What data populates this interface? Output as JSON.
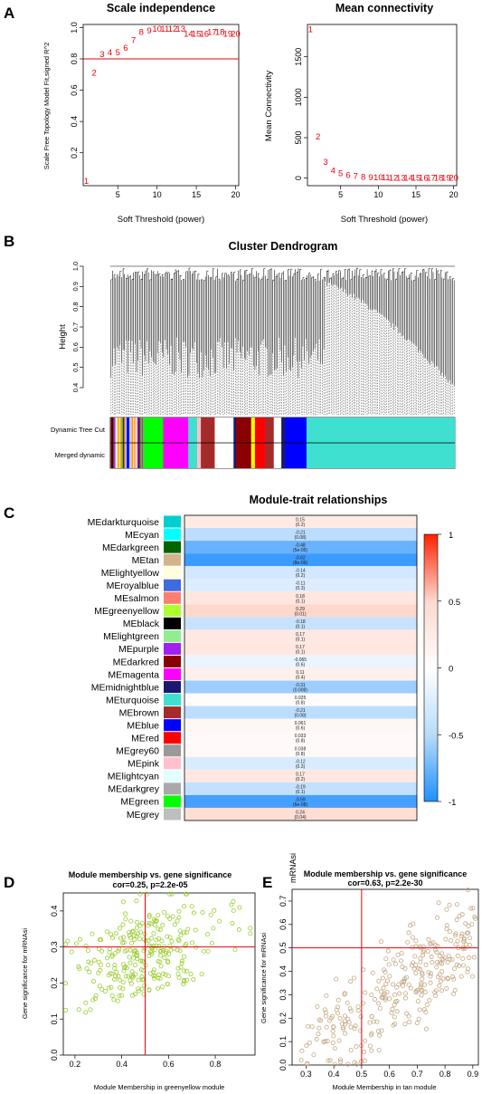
{
  "panels": {
    "a": "A",
    "b": "B",
    "c": "C",
    "d": "D",
    "e": "E"
  },
  "chart_data": [
    {
      "id": "scale_independence",
      "type": "scatter",
      "title": "Scale independence",
      "xlabel": "Soft Threshold (power)",
      "ylabel": "Scale Free Topology Model Fit,signed R^2",
      "xlim": [
        1,
        20
      ],
      "ylim": [
        0,
        1.0
      ],
      "xticks": [
        5,
        10,
        15,
        20
      ],
      "yticks": [
        0.2,
        0.4,
        0.6,
        0.8,
        1.0
      ],
      "hline": 0.8,
      "x": [
        1,
        2,
        3,
        4,
        5,
        6,
        7,
        8,
        9,
        10,
        11,
        12,
        13,
        14,
        15,
        16,
        17,
        18,
        19,
        20
      ],
      "y": [
        0.02,
        0.71,
        0.83,
        0.84,
        0.84,
        0.87,
        0.92,
        0.97,
        0.98,
        0.99,
        0.99,
        0.99,
        0.99,
        0.96,
        0.96,
        0.96,
        0.97,
        0.97,
        0.96,
        0.96
      ],
      "labels": [
        "1",
        "2",
        "3",
        "4",
        "5",
        "6",
        "7",
        "8",
        "9",
        "10",
        "11",
        "12",
        "13",
        "14",
        "15",
        "16",
        "17",
        "18",
        "19",
        "20"
      ]
    },
    {
      "id": "mean_connectivity",
      "type": "scatter",
      "title": "Mean connectivity",
      "xlabel": "Soft Threshold (power)",
      "ylabel": "Mean Connectivity",
      "xlim": [
        1,
        20
      ],
      "ylim": [
        0,
        1900
      ],
      "xticks": [
        5,
        10,
        15,
        20
      ],
      "yticks": [
        0,
        500,
        1000,
        1500
      ],
      "x": [
        1,
        2,
        3,
        4,
        5,
        6,
        7,
        8,
        9,
        10,
        11,
        12,
        13,
        14,
        15,
        16,
        17,
        18,
        19,
        20
      ],
      "y": [
        1840,
        510,
        200,
        90,
        55,
        35,
        22,
        15,
        10,
        7,
        5,
        4,
        3,
        3,
        2,
        2,
        2,
        1,
        1,
        1
      ],
      "labels": [
        "1",
        "2",
        "3",
        "4",
        "5",
        "6",
        "7",
        "8",
        "9",
        "10",
        "11",
        "12",
        "13",
        "14",
        "15",
        "16",
        "17",
        "18",
        "19",
        "20"
      ]
    },
    {
      "id": "cluster_dendrogram",
      "type": "dendrogram",
      "title": "Cluster Dendrogram",
      "ylabel": "Height",
      "ylim": [
        0.4,
        1.0
      ],
      "yticks": [
        0.4,
        0.5,
        0.6,
        0.7,
        0.8,
        0.9,
        1.0
      ],
      "color_rows": [
        "Dynamic Tree Cut",
        "Merged dynamic"
      ],
      "color_blocks": [
        "#9ad0f5",
        "#7f7f7f",
        "#ffffff",
        "#f0f064",
        "#0000ff",
        "#000000",
        "#a020f0",
        "#adff2f",
        "#ff00ff",
        "#00ff00",
        "#40e0d0",
        "#ff0000",
        "#ffc0cb",
        "#ffff00",
        "#a52a2a",
        "#191970",
        "#8b0000",
        "#fa8072",
        "#e0ffff",
        "#0000ff",
        "#40e0d0"
      ]
    },
    {
      "id": "module_trait",
      "type": "heatmap",
      "title": "Module-trait relationships",
      "rows": [
        {
          "name": "MEdarkturquoise",
          "color": "#00ced1",
          "value": 0.15,
          "p": "(0.2)"
        },
        {
          "name": "MEcyan",
          "color": "#00ffff",
          "value": -0.21,
          "p": "(0.08)"
        },
        {
          "name": "MEdarkgreen",
          "color": "#006400",
          "value": -0.48,
          "p": "(5e-05)"
        },
        {
          "name": "MEtan",
          "color": "#d2b48c",
          "value": -0.62,
          "p": "(8e-09)"
        },
        {
          "name": "MElightyellow",
          "color": "#ffffe0",
          "value": -0.14,
          "p": "(0.2)"
        },
        {
          "name": "MEroyalblue",
          "color": "#4169e1",
          "value": -0.11,
          "p": "(0.3)"
        },
        {
          "name": "MEsalmon",
          "color": "#fa8072",
          "value": 0.18,
          "p": "(0.1)"
        },
        {
          "name": "MEgreenyellow",
          "color": "#adff2f",
          "value": 0.29,
          "p": "(0.01)"
        },
        {
          "name": "MEblack",
          "color": "#000000",
          "value": -0.18,
          "p": "(0.1)"
        },
        {
          "name": "MElightgreen",
          "color": "#90ee90",
          "value": 0.17,
          "p": "(0.1)"
        },
        {
          "name": "MEpurple",
          "color": "#a020f0",
          "value": 0.17,
          "p": "(0.1)"
        },
        {
          "name": "MEdarkred",
          "color": "#8b0000",
          "value": -0.065,
          "p": "(0.6)"
        },
        {
          "name": "MEmagenta",
          "color": "#ff00ff",
          "value": 0.11,
          "p": "(0.4)"
        },
        {
          "name": "MEmidnightblue",
          "color": "#191970",
          "value": -0.31,
          "p": "(0.008)"
        },
        {
          "name": "MEturquoise",
          "color": "#40e0d0",
          "value": 0.025,
          "p": "(0.8)"
        },
        {
          "name": "MEbrown",
          "color": "#a52a2a",
          "value": -0.21,
          "p": "(0.08)"
        },
        {
          "name": "MEblue",
          "color": "#0000ff",
          "value": 0.061,
          "p": "(0.6)"
        },
        {
          "name": "MEred",
          "color": "#ff0000",
          "value": 0.033,
          "p": "(0.8)"
        },
        {
          "name": "MEgrey60",
          "color": "#999999",
          "value": 0.038,
          "p": "(0.8)"
        },
        {
          "name": "MEpink",
          "color": "#ffc0cb",
          "value": -0.12,
          "p": "(0.3)"
        },
        {
          "name": "MElightcyan",
          "color": "#e0ffff",
          "value": 0.17,
          "p": "(0.2)"
        },
        {
          "name": "MEdarkgrey",
          "color": "#a9a9a9",
          "value": -0.19,
          "p": "(0.1)"
        },
        {
          "name": "MEgreen",
          "color": "#00ff00",
          "value": -0.59,
          "p": "(6e-08)"
        },
        {
          "name": "MEgrey",
          "color": "#bebebe",
          "value": 0.24,
          "p": "(0.04)"
        }
      ],
      "scale_ticks": [
        "1",
        "0.5",
        "0",
        "-0.5",
        "-1"
      ],
      "scale_colors": [
        "#ff2200",
        "#fcd9cf",
        "#ffffff",
        "#b8dcf8",
        "#1e90ff"
      ]
    },
    {
      "id": "mm_gs_greenyellow",
      "type": "scatter",
      "title": "Module membership vs. gene significance",
      "subtitle": "cor=0.25, p=2.2e-05",
      "xlabel": "Module Membership in greenyellow module",
      "ylabel": "Gene significance for  mRNAsi",
      "xlim": [
        0.15,
        0.97
      ],
      "ylim": [
        0,
        0.45
      ],
      "xticks": [
        0.2,
        0.4,
        0.6,
        0.8
      ],
      "yticks": [
        0.0,
        0.1,
        0.2,
        0.3,
        0.4
      ],
      "vline": 0.5,
      "hline": 0.3,
      "point_color": "#9acd32",
      "n_points": 280,
      "cor": 0.25
    },
    {
      "id": "mm_gs_tan",
      "type": "scatter",
      "header": "mRNAsi",
      "title": "Module membership vs. gene significance",
      "subtitle": "cor=0.63, p=2.2e-30",
      "xlabel": "Module Membership in tan module",
      "ylabel": "Gene significance for mRNAsi",
      "xlim": [
        0.25,
        0.92
      ],
      "ylim": [
        0,
        0.75
      ],
      "xticks": [
        0.3,
        0.4,
        0.5,
        0.6,
        0.7,
        0.8,
        0.9
      ],
      "yticks": [
        0.0,
        0.1,
        0.2,
        0.3,
        0.4,
        0.5,
        0.6,
        0.7
      ],
      "vline": 0.5,
      "hline": 0.5,
      "point_color": "#c4a882",
      "n_points": 300,
      "cor": 0.63
    }
  ]
}
